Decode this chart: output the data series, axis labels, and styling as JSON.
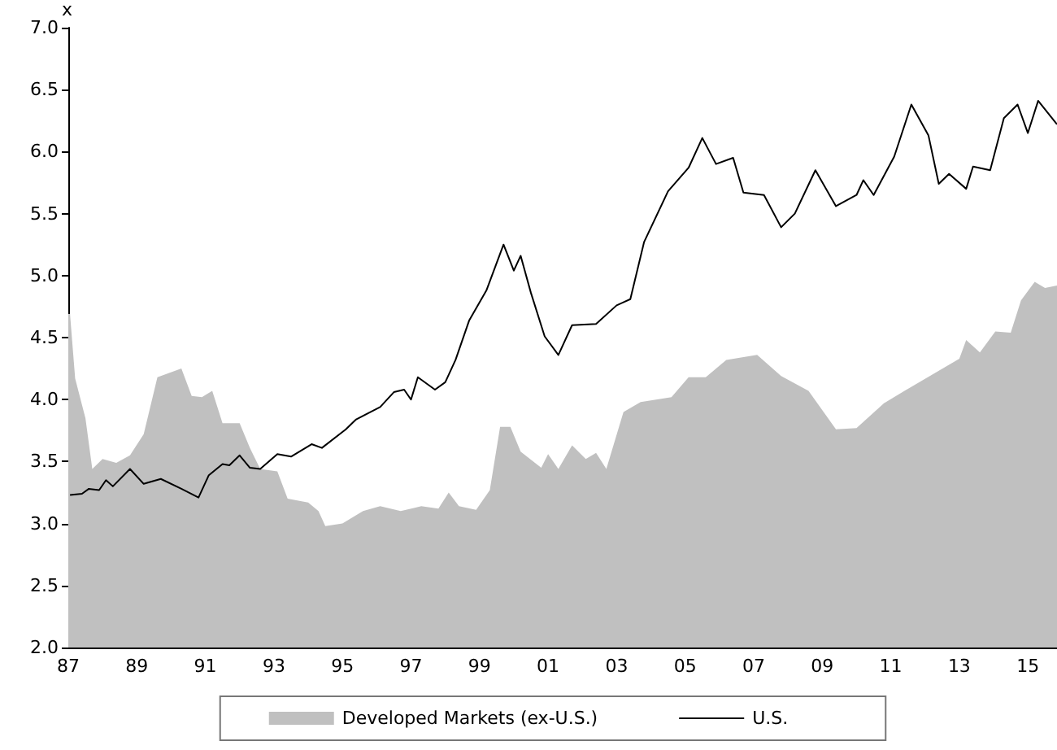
{
  "chart_data": {
    "type": "line",
    "ylabel": "x",
    "xlim": [
      1987,
      2015.85
    ],
    "ylim": [
      2,
      7
    ],
    "xticks": [
      {
        "value": 1987,
        "label": "87"
      },
      {
        "value": 1989,
        "label": "89"
      },
      {
        "value": 1991,
        "label": "91"
      },
      {
        "value": 1993,
        "label": "93"
      },
      {
        "value": 1995,
        "label": "95"
      },
      {
        "value": 1997,
        "label": "97"
      },
      {
        "value": 1999,
        "label": "99"
      },
      {
        "value": 2001,
        "label": "01"
      },
      {
        "value": 2003,
        "label": "03"
      },
      {
        "value": 2005,
        "label": "05"
      },
      {
        "value": 2007,
        "label": "07"
      },
      {
        "value": 2009,
        "label": "09"
      },
      {
        "value": 2011,
        "label": "11"
      },
      {
        "value": 2013,
        "label": "13"
      },
      {
        "value": 2015,
        "label": "15"
      }
    ],
    "yticks": [
      {
        "value": 2,
        "label": "2.0"
      },
      {
        "value": 2.5,
        "label": "2.5"
      },
      {
        "value": 3,
        "label": "3.0"
      },
      {
        "value": 3.5,
        "label": "3.5"
      },
      {
        "value": 4,
        "label": "4.0"
      },
      {
        "value": 4.5,
        "label": "4.5"
      },
      {
        "value": 5,
        "label": "5.0"
      },
      {
        "value": 5.5,
        "label": "5.5"
      },
      {
        "value": 6,
        "label": "6.0"
      },
      {
        "value": 6.5,
        "label": "6.5"
      },
      {
        "value": 7,
        "label": "7.0"
      }
    ],
    "grid": false,
    "legend": "bottom",
    "marker": "none",
    "line_style": "solid",
    "series": [
      {
        "name": "Developed Markets (ex-U.S.)",
        "type": "area",
        "color": "#c0c0c0",
        "x": [
          1987.0,
          1987.05,
          1987.2,
          1987.5,
          1987.7,
          1988.0,
          1988.4,
          1988.8,
          1989.2,
          1989.6,
          1990.3,
          1990.6,
          1990.9,
          1991.2,
          1991.5,
          1992.0,
          1992.3,
          1992.6,
          1993.1,
          1993.4,
          1994.0,
          1994.3,
          1994.5,
          1995.0,
          1995.6,
          1996.1,
          1996.7,
          1997.3,
          1997.8,
          1998.1,
          1998.4,
          1998.9,
          1999.3,
          1999.6,
          1999.9,
          2000.2,
          2000.8,
          2001.0,
          2001.3,
          2001.7,
          2002.1,
          2002.4,
          2002.7,
          2003.2,
          2003.7,
          2004.6,
          2005.1,
          2005.6,
          2006.2,
          2007.1,
          2007.8,
          2008.6,
          2009.4,
          2010.0,
          2010.8,
          2011.4,
          2012.2,
          2013.0,
          2013.2,
          2013.6,
          2014.05,
          2014.5,
          2014.8,
          2015.2,
          2015.5,
          2015.85
        ],
        "values": [
          4.69,
          4.69,
          4.17,
          3.85,
          3.44,
          3.52,
          3.49,
          3.55,
          3.72,
          4.18,
          4.25,
          4.03,
          4.02,
          4.07,
          3.81,
          3.81,
          3.61,
          3.44,
          3.42,
          3.2,
          3.17,
          3.1,
          2.98,
          3.0,
          3.1,
          3.14,
          3.1,
          3.14,
          3.12,
          3.25,
          3.14,
          3.11,
          3.27,
          3.78,
          3.78,
          3.58,
          3.45,
          3.56,
          3.44,
          3.63,
          3.52,
          3.57,
          3.44,
          3.9,
          3.98,
          4.02,
          4.18,
          4.18,
          4.32,
          4.36,
          4.19,
          4.07,
          3.76,
          3.77,
          3.97,
          4.07,
          4.2,
          4.33,
          4.48,
          4.38,
          4.55,
          4.54,
          4.8,
          4.95,
          4.9,
          4.92
        ]
      },
      {
        "name": "U.S.",
        "color": "#000000",
        "x": [
          1987.05,
          1987.4,
          1987.6,
          1987.9,
          1988.1,
          1988.3,
          1988.8,
          1989.2,
          1989.7,
          1990.3,
          1990.8,
          1991.1,
          1991.5,
          1991.7,
          1992.0,
          1992.3,
          1992.6,
          1993.1,
          1993.5,
          1994.1,
          1994.4,
          1995.1,
          1995.4,
          1996.1,
          1996.5,
          1996.8,
          1997.0,
          1997.2,
          1997.7,
          1998.0,
          1998.3,
          1998.7,
          1999.2,
          1999.7,
          2000.0,
          2000.2,
          2000.5,
          2000.9,
          2001.3,
          2001.7,
          2002.4,
          2003.0,
          2003.4,
          2003.8,
          2004.5,
          2005.1,
          2005.5,
          2005.9,
          2006.4,
          2006.7,
          2007.3,
          2007.8,
          2008.2,
          2008.8,
          2009.4,
          2010.0,
          2010.2,
          2010.5,
          2011.1,
          2011.6,
          2012.1,
          2012.4,
          2012.7,
          2013.2,
          2013.4,
          2013.9,
          2014.3,
          2014.7,
          2015.0,
          2015.3,
          2015.85
        ],
        "values": [
          3.23,
          3.24,
          3.28,
          3.27,
          3.35,
          3.3,
          3.44,
          3.32,
          3.36,
          3.28,
          3.21,
          3.39,
          3.48,
          3.47,
          3.55,
          3.45,
          3.44,
          3.56,
          3.54,
          3.64,
          3.61,
          3.76,
          3.84,
          3.94,
          4.06,
          4.08,
          4.0,
          4.18,
          4.08,
          4.14,
          4.32,
          4.64,
          4.88,
          5.25,
          5.04,
          5.16,
          4.86,
          4.51,
          4.36,
          4.6,
          4.61,
          4.76,
          4.81,
          5.27,
          5.68,
          5.87,
          6.11,
          5.9,
          5.95,
          5.67,
          5.65,
          5.39,
          5.5,
          5.85,
          5.56,
          5.65,
          5.77,
          5.65,
          5.96,
          6.38,
          6.13,
          5.74,
          5.82,
          5.7,
          5.88,
          5.85,
          6.27,
          6.38,
          6.15,
          6.41,
          6.22
        ]
      }
    ]
  }
}
